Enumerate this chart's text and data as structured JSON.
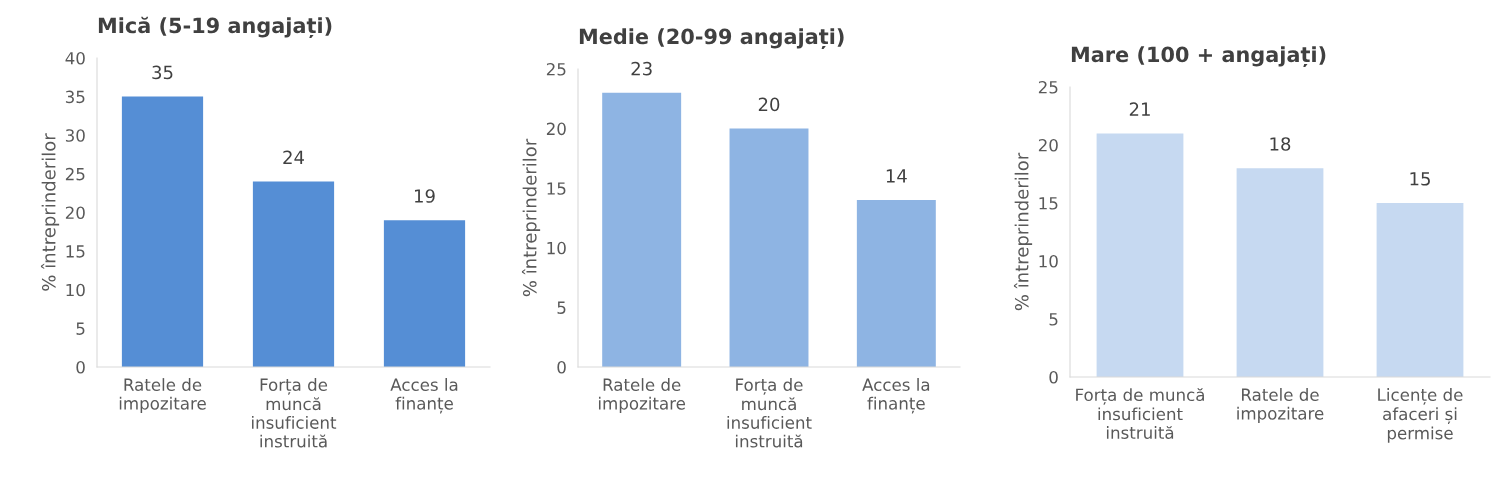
{
  "chart_data": [
    {
      "type": "bar",
      "title": "Mică (5-19 angajați)",
      "ylabel": "% întreprinderilor",
      "categories": [
        "Ratele de\nimpozitare",
        "Forța de\nmuncă\ninsuficient\ninstruită",
        "Acces la\nfinanțe"
      ],
      "values": [
        35,
        24,
        19
      ],
      "color": "#558ed5",
      "ylim": [
        0,
        40
      ],
      "yticks": [
        0,
        5,
        10,
        15,
        20,
        25,
        30,
        35,
        40
      ],
      "data_labels": true,
      "grid": false,
      "legend": false
    },
    {
      "type": "bar",
      "title": "Medie (20-99 angajați)",
      "ylabel": "% întreprinderilor",
      "categories": [
        "Ratele de\nimpozitare",
        "Forța de\nmuncă\ninsuficient\ninstruită",
        "Acces la\nfinanțe"
      ],
      "values": [
        23,
        20,
        14
      ],
      "color": "#8eb4e3",
      "ylim": [
        0,
        25
      ],
      "yticks": [
        0,
        5,
        10,
        15,
        20,
        25
      ],
      "data_labels": true,
      "grid": false,
      "legend": false
    },
    {
      "type": "bar",
      "title": "Mare (100 + angajați)",
      "ylabel": "% întreprinderilor",
      "categories": [
        "Forța de muncă\ninsuficient\ninstruită",
        "Ratele de\nimpozitare",
        "Licențe de\nafaceri și\npermise"
      ],
      "values": [
        21,
        18,
        15
      ],
      "color": "#c6d9f1",
      "ylim": [
        0,
        25
      ],
      "yticks": [
        0,
        5,
        10,
        15,
        20,
        25
      ],
      "data_labels": true,
      "grid": false,
      "legend": false
    }
  ]
}
